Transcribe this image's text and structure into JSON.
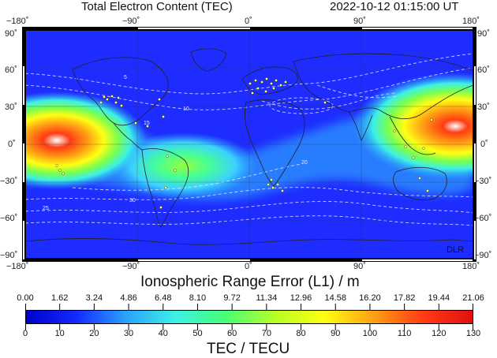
{
  "header": {
    "title": "Total Electron Content (TEC)",
    "datetime": "2022-10-12  01:15:00 UT"
  },
  "map": {
    "lon_ticks": [
      "−180˚",
      "−90˚",
      "0˚",
      "90˚",
      "180˚"
    ],
    "lat_ticks": [
      "90˚",
      "60˚",
      "30˚",
      "0˚",
      "−30˚",
      "−60˚",
      "−90˚"
    ],
    "contour_labels": [
      "5",
      "10",
      "15",
      "20",
      "25",
      "30"
    ],
    "watermark": "DLR",
    "colors": {
      "low": "#1414ff",
      "mid": "#3cff9c",
      "high": "#ff2a1a",
      "peak": "#ffffff",
      "contour": "#e8e8ff",
      "station": "#ffff66"
    }
  },
  "range_error": {
    "title": "Ionospheric Range Error (L1) / m",
    "ticks": [
      "0.00",
      "1.62",
      "3.24",
      "4.86",
      "6.48",
      "8.10",
      "9.72",
      "11.34",
      "12.96",
      "14.58",
      "16.20",
      "17.82",
      "19.44",
      "21.06"
    ]
  },
  "colorbar": {
    "title": "TEC / TECU",
    "ticks": [
      "0",
      "10",
      "20",
      "30",
      "40",
      "50",
      "60",
      "70",
      "80",
      "90",
      "100",
      "110",
      "120",
      "130"
    ],
    "stops": [
      "#0000c8",
      "#1428ff",
      "#2aa0ff",
      "#3cf0e6",
      "#46ff78",
      "#b4ff28",
      "#ffff14",
      "#ffa014",
      "#ff3c14",
      "#e01010"
    ]
  }
}
